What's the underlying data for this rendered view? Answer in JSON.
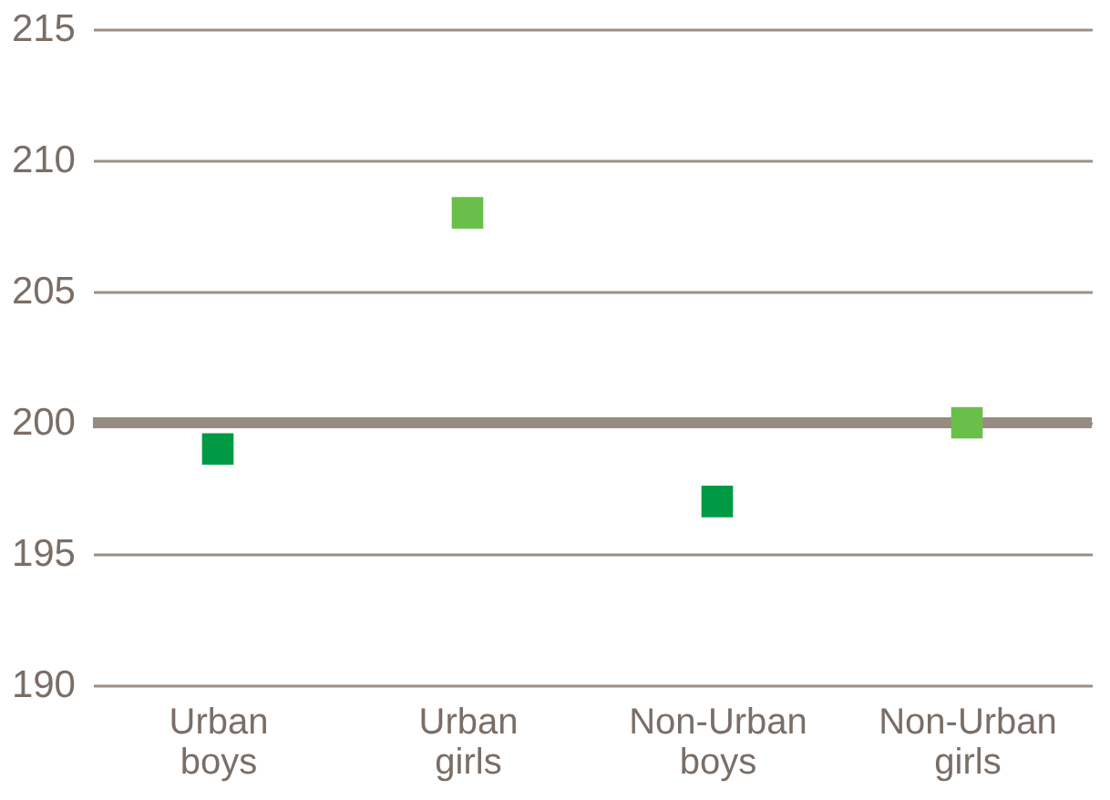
{
  "chart_data": {
    "type": "scatter",
    "categories": [
      "Urban boys",
      "Urban girls",
      "Non-Urban boys",
      "Non-Urban girls"
    ],
    "values": [
      199,
      208,
      197,
      200
    ],
    "colors": [
      "#009a44",
      "#6abf4b",
      "#009a44",
      "#6abf4b"
    ],
    "marker": "square",
    "ylim": [
      190,
      215
    ],
    "yticks": [
      190,
      195,
      200,
      205,
      210,
      215
    ],
    "grid": "y",
    "ref_lines": [
      {
        "axis": "y",
        "value": 200,
        "color": "#978b82"
      }
    ]
  }
}
